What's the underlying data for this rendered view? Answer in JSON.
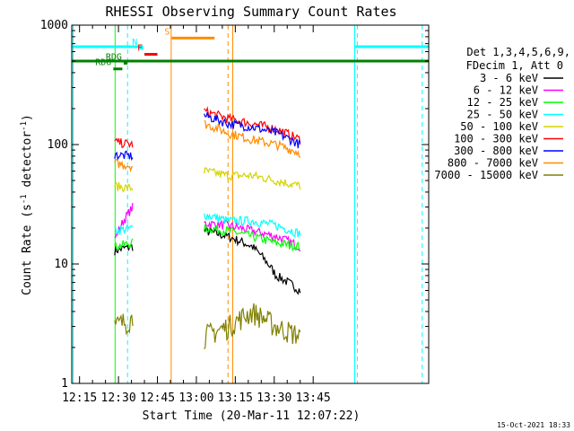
{
  "chart_data": {
    "type": "line",
    "title": "RHESSI Observing Summary Count Rates",
    "xlabel": "Start Time (20-Mar-11 12:07:22)",
    "ylabel_main": "Count Rate (s",
    "ylabel_sup1": "-1",
    "ylabel_mid": " detector",
    "ylabel_sup2": "-1",
    "ylabel_end": ")",
    "yscale": "log",
    "ylim": [
      1,
      1000
    ],
    "xlim_minutes": [
      12.0,
      149.5
    ],
    "x_ticks": [
      {
        "m": 15,
        "label": "12:15"
      },
      {
        "m": 30,
        "label": "12:30"
      },
      {
        "m": 45,
        "label": "12:45"
      },
      {
        "m": 60,
        "label": "13:00"
      },
      {
        "m": 75,
        "label": "13:15"
      },
      {
        "m": 90,
        "label": "13:30"
      },
      {
        "m": 105,
        "label": "13:45"
      }
    ],
    "y_ticks": [
      {
        "v": 1,
        "label": "1"
      },
      {
        "v": 10,
        "label": "10"
      },
      {
        "v": 100,
        "label": "100"
      },
      {
        "v": 1000,
        "label": "1000"
      }
    ],
    "legend_header": [
      "Det 1,3,4,5,6,9,",
      "FDecim 1, Att 0"
    ],
    "legend_position": "right",
    "series": [
      {
        "name": "3 - 6 keV",
        "color": "#000000",
        "seg1": [
          13,
          14
        ],
        "seg2": [
          19,
          17,
          14,
          8,
          6
        ]
      },
      {
        "name": "6 - 12 keV",
        "color": "#ff00ff",
        "seg1": [
          16,
          30
        ],
        "seg2": [
          22,
          21,
          19,
          17,
          14
        ]
      },
      {
        "name": "12 - 25 keV",
        "color": "#00ff00",
        "seg1": [
          14,
          15
        ],
        "seg2": [
          20,
          19,
          17,
          15,
          14
        ]
      },
      {
        "name": "25 - 50 keV",
        "color": "#00ffff",
        "seg1": [
          19,
          20
        ],
        "seg2": [
          26,
          23,
          23,
          21,
          18
        ]
      },
      {
        "name": "50 - 100 keV",
        "color": "#d4d400",
        "seg1": [
          45,
          43
        ],
        "seg2": [
          60,
          55,
          55,
          50,
          45
        ]
      },
      {
        "name": "100 - 300 keV",
        "color": "#ff0000",
        "seg1": [
          105,
          100
        ],
        "seg2": [
          190,
          165,
          150,
          135,
          110
        ]
      },
      {
        "name": "300 - 800 keV",
        "color": "#0000ff",
        "seg1": [
          82,
          80
        ],
        "seg2": [
          175,
          150,
          140,
          125,
          100
        ]
      },
      {
        "name": "800 - 7000 keV",
        "color": "#ff8c00",
        "seg1": [
          70,
          66
        ],
        "seg2": [
          150,
          125,
          110,
          100,
          85
        ]
      },
      {
        "name": "7000 - 15000 keV",
        "color": "#808000",
        "seg1": [
          3,
          3.5
        ],
        "seg2": [
          2.5,
          3,
          4,
          3,
          2.5
        ]
      }
    ],
    "segments_min": {
      "seg1": [
        28.5,
        35.5
      ],
      "seg2": [
        63.0,
        100.0
      ]
    },
    "flag_bars": [
      {
        "label": "",
        "color": "#00ffff",
        "range": [
          12.0,
          39.5
        ],
        "y": 660
      },
      {
        "label": "",
        "color": "#00ffff",
        "range": [
          121.0,
          149.5
        ],
        "y": 660
      },
      {
        "label": "",
        "color": "#008000",
        "range": [
          12.0,
          149.5
        ],
        "y": 500
      },
      {
        "label": "S",
        "color": "#ff8c00",
        "range": [
          50.5,
          67.0
        ],
        "y": 780
      },
      {
        "label": "N",
        "color": "#00ffff",
        "range": [
          38.0,
          39.5
        ],
        "y": 640
      },
      {
        "label": "F",
        "color": "#ff0000",
        "range": [
          40.0,
          45.0
        ],
        "y": 570
      },
      {
        "label": "RDG",
        "color": "#008000",
        "range": [
          32.0,
          33.5
        ],
        "y": 480
      },
      {
        "label": "RD6",
        "color": "#008000",
        "range": [
          28.0,
          31.5
        ],
        "y": 430
      }
    ],
    "vlines": [
      {
        "m": 12.5,
        "color": "#00ffff",
        "style": "solid"
      },
      {
        "m": 28.7,
        "color": "#00ff00",
        "style": "solid"
      },
      {
        "m": 33.5,
        "color": "#00ffff",
        "style": "dashed"
      },
      {
        "m": 50.3,
        "color": "#ff8c00",
        "style": "solid"
      },
      {
        "m": 72.2,
        "color": "#ff8c00",
        "style": "dashed"
      },
      {
        "m": 74.0,
        "color": "#ff8c00",
        "style": "solid"
      },
      {
        "m": 121.0,
        "color": "#00ffff",
        "style": "solid"
      },
      {
        "m": 122.0,
        "color": "#00ffff",
        "style": "dashed"
      },
      {
        "m": 147.0,
        "color": "#00ffff",
        "style": "dashed"
      }
    ],
    "timestamp": "15-Oct-2021 18:33"
  }
}
